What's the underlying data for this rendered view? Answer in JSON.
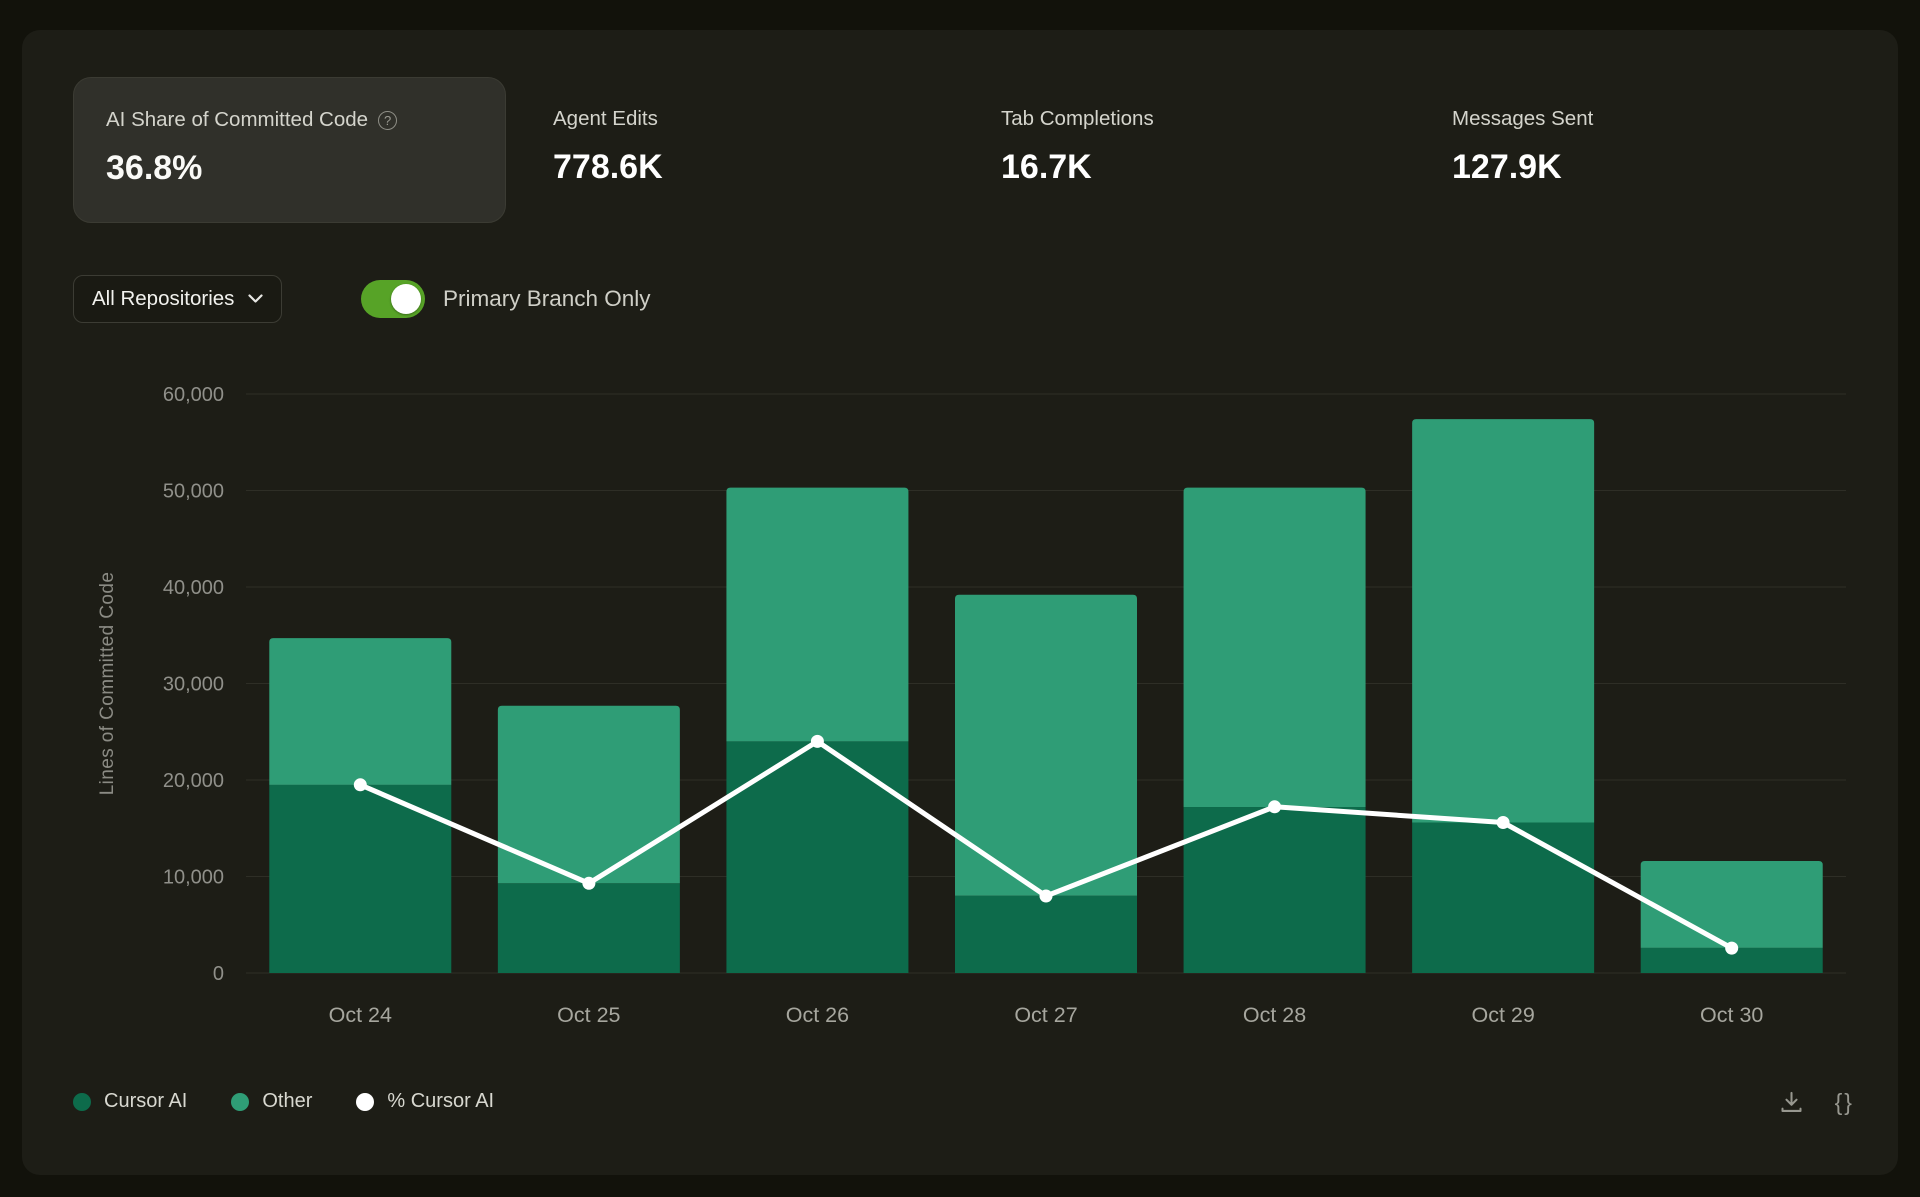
{
  "metrics": [
    {
      "label": "AI Share of Committed Code",
      "value": "36.8%",
      "selected": true,
      "has_help_icon": true
    },
    {
      "label": "Agent Edits",
      "value": "778.6K",
      "selected": false
    },
    {
      "label": "Tab Completions",
      "value": "16.7K",
      "selected": false
    },
    {
      "label": "Messages Sent",
      "value": "127.9K",
      "selected": false
    }
  ],
  "controls": {
    "repository_filter": "All Repositories",
    "primary_branch_toggle": {
      "label": "Primary Branch Only",
      "state": "on"
    }
  },
  "chart_data": {
    "type": "bar",
    "stacked": true,
    "title": "",
    "ylabel": "Lines of Committed Code",
    "ylim": [
      0,
      60000
    ],
    "yticks": [
      "0",
      "10,000",
      "20,000",
      "30,000",
      "40,000",
      "50,000",
      "60,000"
    ],
    "percent_axis_lim": [
      0,
      100
    ],
    "grid": true,
    "legend_position": "bottom-left",
    "categories": [
      "Oct 24",
      "Oct 25",
      "Oct 26",
      "Oct 27",
      "Oct 28",
      "Oct 29",
      "Oct 30"
    ],
    "series": [
      {
        "name": "Cursor AI",
        "type": "bar",
        "color": "#0d6b4b",
        "values": [
          19500,
          9300,
          24000,
          8000,
          17200,
          15600,
          2600
        ]
      },
      {
        "name": "Other",
        "type": "bar",
        "color": "#2f9d76",
        "values": [
          15200,
          18400,
          26300,
          31200,
          33100,
          41800,
          9000
        ]
      },
      {
        "name": "% Cursor AI",
        "type": "line",
        "axis": "percent",
        "color": "#ffffff",
        "values": [
          32.5,
          15.5,
          40,
          13.3,
          28.7,
          26,
          4.3
        ]
      }
    ]
  },
  "legend": [
    {
      "label": "Cursor AI",
      "color": "#0d6b4b"
    },
    {
      "label": "Other",
      "color": "#2f9d76"
    },
    {
      "label": "% Cursor AI",
      "color": "#ffffff"
    }
  ],
  "footer": {
    "json_export_glyph": "{}"
  },
  "colors": {
    "page_bg": "#12120b",
    "panel_bg": "#1d1d16",
    "card_bg": "#30302a",
    "toggle_on": "#57a327",
    "grid_line": "#2e2e26",
    "axis_text": "#90908a"
  }
}
